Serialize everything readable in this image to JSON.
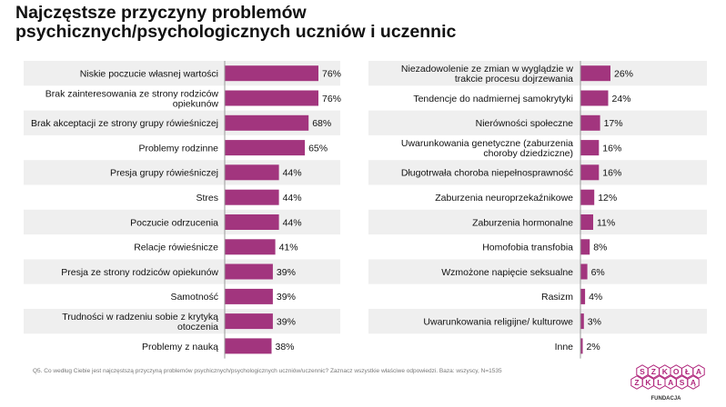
{
  "title": "Najczęstsze przyczyny problemów psychicznych/psychologicznych uczniów i uczennic",
  "note": "Q5. Co według Ciebie jest najczęstszą przyczyną problemów psychicznych/psychologicznych uczniów/uczennic? Zaznacz wszystkie właściwe odpowiedzi. Baza: wszyscy, N=1535",
  "logo": {
    "top_letters": [
      "S",
      "Z",
      "K",
      "O",
      "Ł",
      "A"
    ],
    "bottom_letters": [
      "Z",
      "K",
      "L",
      "A",
      "S",
      "Ą"
    ],
    "caption": "FUNDACJA"
  },
  "colors": {
    "bar": "#a2357e",
    "stripe": "#efefef",
    "axis": "#9a9a9a",
    "logo": "#b0267c"
  },
  "chart_data": [
    {
      "type": "bar",
      "orientation": "horizontal",
      "value_suffix": "%",
      "categories": [
        "Niskie poczucie własnej wartości",
        "Brak zainteresowania ze strony rodziców opiekunów",
        "Brak akceptacji ze strony grupy rówieśniczej",
        "Problemy rodzinne",
        "Presja grupy rówieśniczej",
        "Stres",
        "Poczucie odrzucenia",
        "Relacje rówieśnicze",
        "Presja ze strony rodziców opiekunów",
        "Samotność",
        "Trudności w radzeniu sobie z krytyką otoczenia",
        "Problemy z nauką"
      ],
      "values": [
        76,
        76,
        68,
        65,
        44,
        44,
        44,
        41,
        39,
        39,
        39,
        38
      ]
    },
    {
      "type": "bar",
      "orientation": "horizontal",
      "value_suffix": "%",
      "categories": [
        "Niezadowolenie ze zmian w wyglądzie w trakcie procesu dojrzewania",
        "Tendencje do nadmiernej samokrytyki",
        "Nierówności społeczne",
        "Uwarunkowania genetyczne (zaburzenia choroby dziedziczne)",
        "Długotrwała choroba niepełnosprawność",
        "Zaburzenia neuroprzekaźnikowe",
        "Zaburzenia hormonalne",
        "Homofobia transfobia",
        "Wzmożone napięcie seksualne",
        "Rasizm",
        "Uwarunkowania religijne/ kulturowe",
        "Inne"
      ],
      "values": [
        26,
        24,
        17,
        16,
        16,
        12,
        11,
        8,
        6,
        4,
        3,
        2
      ]
    }
  ]
}
